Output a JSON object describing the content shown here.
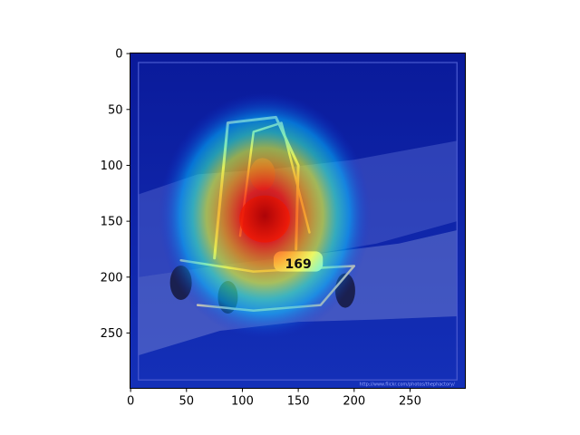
{
  "chart_data": {
    "type": "heatmap",
    "title": "",
    "xlabel": "",
    "ylabel": "",
    "xlim": [
      0,
      299
    ],
    "ylim": [
      299,
      0
    ],
    "x_ticks": [
      0,
      50,
      100,
      150,
      200,
      250
    ],
    "y_ticks": [
      0,
      50,
      100,
      150,
      200,
      250
    ],
    "x_tick_labels": [
      "0",
      "50",
      "100",
      "150",
      "200",
      "250"
    ],
    "y_tick_labels": [
      "0",
      "50",
      "100",
      "150",
      "200",
      "250"
    ],
    "image": {
      "subject": "go-kart with driver on a race track",
      "kart_number": "169",
      "watermark": "http://www.flickr.com/photos/thephactory/"
    },
    "overlay": {
      "colormap": "jet",
      "hotspot_center": [
        120,
        145
      ],
      "hotspot_radius": [
        95,
        110
      ]
    },
    "colors": {
      "background_low": "#00008b",
      "mid": "#00ffff",
      "high": "#ff0000",
      "track": "#8a8a96"
    }
  }
}
